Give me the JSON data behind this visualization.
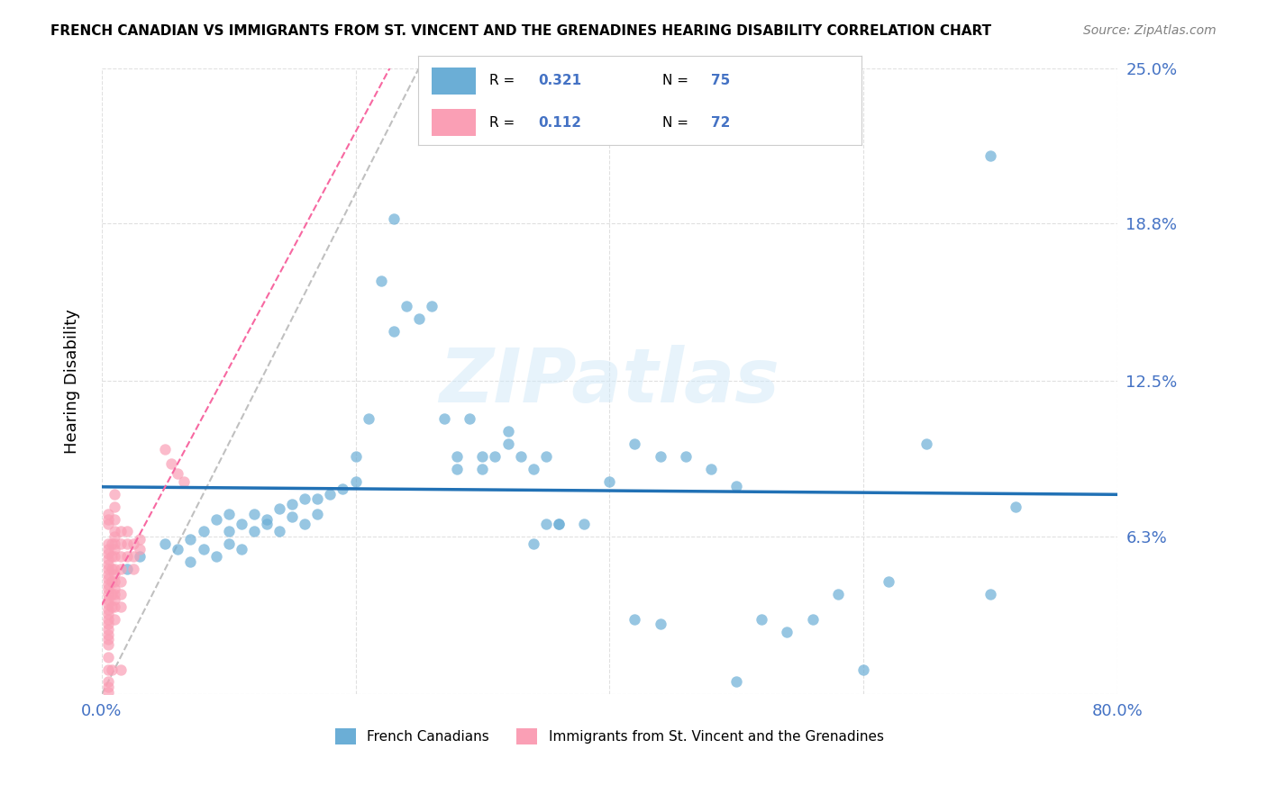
{
  "title": "FRENCH CANADIAN VS IMMIGRANTS FROM ST. VINCENT AND THE GRENADINES HEARING DISABILITY CORRELATION CHART",
  "source": "Source: ZipAtlas.com",
  "xlabel_label": "French Canadians",
  "xlabel_label2": "Immigrants from St. Vincent and the Grenadines",
  "ylabel": "Hearing Disability",
  "xlim": [
    0.0,
    0.8
  ],
  "ylim": [
    0.0,
    0.25
  ],
  "ytick_labels": [
    "",
    "6.3%",
    "12.5%",
    "18.8%",
    "25.0%"
  ],
  "ytick_vals": [
    0.0,
    0.063,
    0.125,
    0.188,
    0.25
  ],
  "xtick_labels": [
    "0.0%",
    "80.0%"
  ],
  "xtick_vals": [
    0.0,
    0.8
  ],
  "blue_R": 0.321,
  "blue_N": 75,
  "pink_R": 0.112,
  "pink_N": 72,
  "blue_color": "#6baed6",
  "pink_color": "#fa9fb5",
  "blue_line_color": "#2171b5",
  "pink_line_color": "#f768a1",
  "diagonal_color": "#c0c0c0",
  "watermark": "ZIPatlas",
  "blue_scatter_x": [
    0.02,
    0.03,
    0.05,
    0.06,
    0.07,
    0.07,
    0.08,
    0.08,
    0.09,
    0.09,
    0.1,
    0.1,
    0.1,
    0.11,
    0.11,
    0.12,
    0.12,
    0.13,
    0.13,
    0.14,
    0.14,
    0.15,
    0.15,
    0.16,
    0.16,
    0.17,
    0.17,
    0.18,
    0.19,
    0.2,
    0.2,
    0.21,
    0.22,
    0.23,
    0.23,
    0.24,
    0.25,
    0.26,
    0.27,
    0.28,
    0.28,
    0.29,
    0.3,
    0.3,
    0.31,
    0.32,
    0.33,
    0.34,
    0.35,
    0.35,
    0.36,
    0.36,
    0.38,
    0.4,
    0.42,
    0.44,
    0.46,
    0.48,
    0.5,
    0.52,
    0.54,
    0.56,
    0.58,
    0.6,
    0.62,
    0.65,
    0.7,
    0.72,
    0.3,
    0.32,
    0.34,
    0.5,
    0.42,
    0.44,
    0.7
  ],
  "blue_scatter_y": [
    0.05,
    0.055,
    0.06,
    0.058,
    0.062,
    0.053,
    0.065,
    0.058,
    0.07,
    0.055,
    0.065,
    0.072,
    0.06,
    0.068,
    0.058,
    0.072,
    0.065,
    0.07,
    0.068,
    0.074,
    0.065,
    0.076,
    0.071,
    0.078,
    0.068,
    0.078,
    0.072,
    0.08,
    0.082,
    0.085,
    0.095,
    0.11,
    0.165,
    0.19,
    0.145,
    0.155,
    0.15,
    0.155,
    0.11,
    0.09,
    0.095,
    0.11,
    0.095,
    0.09,
    0.095,
    0.105,
    0.095,
    0.09,
    0.095,
    0.068,
    0.068,
    0.068,
    0.068,
    0.085,
    0.1,
    0.095,
    0.095,
    0.09,
    0.083,
    0.03,
    0.025,
    0.03,
    0.04,
    0.01,
    0.045,
    0.1,
    0.215,
    0.075,
    0.23,
    0.1,
    0.06,
    0.005,
    0.03,
    0.028,
    0.04
  ],
  "pink_scatter_x": [
    0.005,
    0.005,
    0.005,
    0.005,
    0.005,
    0.005,
    0.005,
    0.005,
    0.005,
    0.005,
    0.005,
    0.005,
    0.005,
    0.005,
    0.005,
    0.005,
    0.005,
    0.005,
    0.005,
    0.005,
    0.005,
    0.005,
    0.005,
    0.005,
    0.005,
    0.005,
    0.005,
    0.005,
    0.005,
    0.008,
    0.008,
    0.008,
    0.008,
    0.008,
    0.008,
    0.008,
    0.01,
    0.01,
    0.01,
    0.01,
    0.01,
    0.01,
    0.01,
    0.01,
    0.01,
    0.01,
    0.01,
    0.01,
    0.01,
    0.015,
    0.015,
    0.015,
    0.015,
    0.015,
    0.015,
    0.015,
    0.015,
    0.02,
    0.02,
    0.02,
    0.025,
    0.025,
    0.025,
    0.03,
    0.03,
    0.05,
    0.055,
    0.06,
    0.065,
    0.01,
    0.01,
    0.01
  ],
  "pink_scatter_y": [
    0.06,
    0.058,
    0.056,
    0.054,
    0.052,
    0.05,
    0.048,
    0.046,
    0.044,
    0.042,
    0.04,
    0.038,
    0.036,
    0.034,
    0.032,
    0.03,
    0.028,
    0.026,
    0.024,
    0.022,
    0.02,
    0.015,
    0.01,
    0.005,
    0.003,
    0.001,
    0.068,
    0.07,
    0.072,
    0.06,
    0.055,
    0.05,
    0.045,
    0.04,
    0.035,
    0.01,
    0.065,
    0.063,
    0.06,
    0.058,
    0.055,
    0.05,
    0.048,
    0.045,
    0.042,
    0.04,
    0.038,
    0.035,
    0.03,
    0.065,
    0.06,
    0.055,
    0.05,
    0.045,
    0.04,
    0.035,
    0.01,
    0.065,
    0.06,
    0.055,
    0.06,
    0.055,
    0.05,
    0.062,
    0.058,
    0.098,
    0.092,
    0.088,
    0.085,
    0.08,
    0.075,
    0.07
  ]
}
